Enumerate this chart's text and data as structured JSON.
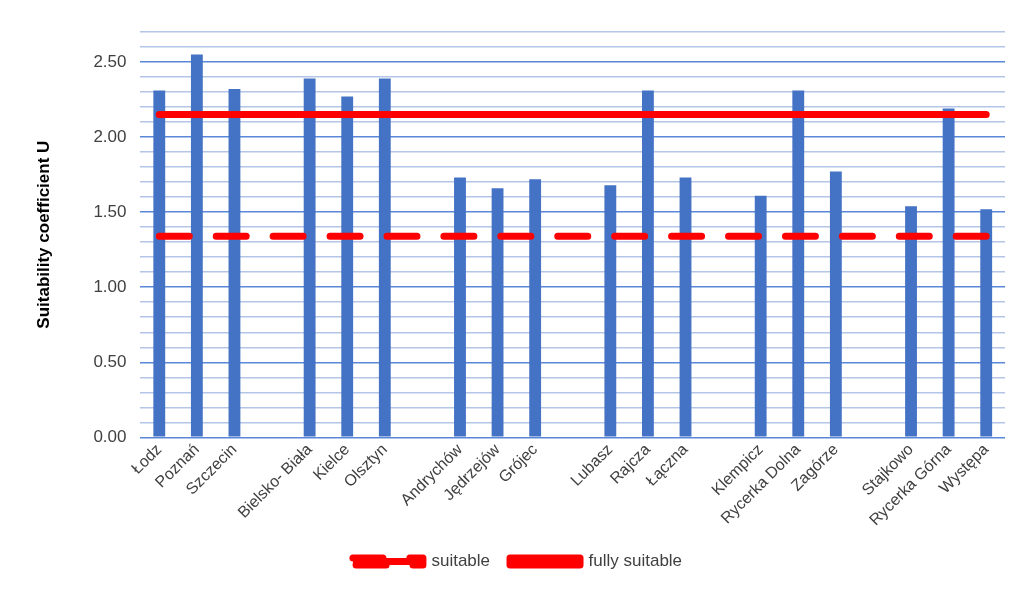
{
  "chart_data": {
    "type": "bar",
    "ylabel": "Suitability coefficient U",
    "categories": [
      "Łodz",
      "Poznań",
      "Szczecin",
      null,
      "Bielsko- Biała",
      "Kielce",
      "Olsztyn",
      null,
      "Andrychów",
      "Jędrzejów",
      "Grójec",
      null,
      "Lubasz",
      "Rajcza",
      "Łączna",
      null,
      "Klempicz",
      "Rycerka Dolna",
      "Zagórze",
      null,
      "Stajkowo",
      "Rycerka Górna",
      "Występa"
    ],
    "series": [
      {
        "type": "line",
        "name": "suitable",
        "color": "#ff0000",
        "line_style": "dashed",
        "values": [
          1.34,
          1.34,
          1.34,
          1.34,
          1.34,
          1.34,
          1.34,
          1.34,
          1.34,
          1.34,
          1.34,
          1.34,
          1.34,
          1.34,
          1.34,
          1.34,
          1.34,
          1.34,
          1.34,
          1.34,
          1.34,
          1.34,
          1.34
        ]
      },
      {
        "type": "line",
        "name": "fully suitable",
        "color": "#ff0000",
        "line_style": "solid",
        "values": [
          2.15,
          2.15,
          2.15,
          2.15,
          2.15,
          2.15,
          2.15,
          2.15,
          2.15,
          2.15,
          2.15,
          2.15,
          2.15,
          2.15,
          2.15,
          2.15,
          2.15,
          2.15,
          2.15,
          2.15,
          2.15,
          2.15,
          2.15
        ]
      },
      {
        "color": "#4472c4",
        "values": [
          2.31,
          2.55,
          2.32,
          null,
          2.39,
          2.27,
          2.39,
          null,
          1.73,
          1.66,
          1.72,
          null,
          1.68,
          2.31,
          1.73,
          null,
          1.61,
          2.31,
          1.77,
          null,
          1.54,
          2.19,
          1.52
        ]
      }
    ],
    "ylim": [
      0,
      2.7
    ],
    "yticks": [
      {
        "value": 0,
        "label": "0.00"
      },
      {
        "value": 0.1,
        "label": null
      },
      {
        "value": 0.2,
        "label": null
      },
      {
        "value": 0.3,
        "label": null
      },
      {
        "value": 0.4,
        "label": null
      },
      {
        "value": 0.5,
        "label": "0.50"
      },
      {
        "value": 0.6,
        "label": null
      },
      {
        "value": 0.7,
        "label": null
      },
      {
        "value": 0.8,
        "label": null
      },
      {
        "value": 0.9,
        "label": null
      },
      {
        "value": 1,
        "label": "1.00"
      },
      {
        "value": 1.1,
        "label": null
      },
      {
        "value": 1.2,
        "label": null
      },
      {
        "value": 1.3,
        "label": null
      },
      {
        "value": 1.4,
        "label": null
      },
      {
        "value": 1.5,
        "label": "1.50"
      },
      {
        "value": 1.6,
        "label": null
      },
      {
        "value": 1.7,
        "label": null
      },
      {
        "value": 1.8,
        "label": null
      },
      {
        "value": 1.9,
        "label": null
      },
      {
        "value": 2,
        "label": "2.00"
      },
      {
        "value": 2.1,
        "label": null
      },
      {
        "value": 2.2,
        "label": null
      },
      {
        "value": 2.3,
        "label": null
      },
      {
        "value": 2.4,
        "label": null
      },
      {
        "value": 2.5,
        "label": "2.50"
      },
      {
        "value": 2.6,
        "label": null
      },
      {
        "value": 2.7,
        "label": null
      }
    ],
    "grid": "y",
    "legend": "bottom"
  }
}
